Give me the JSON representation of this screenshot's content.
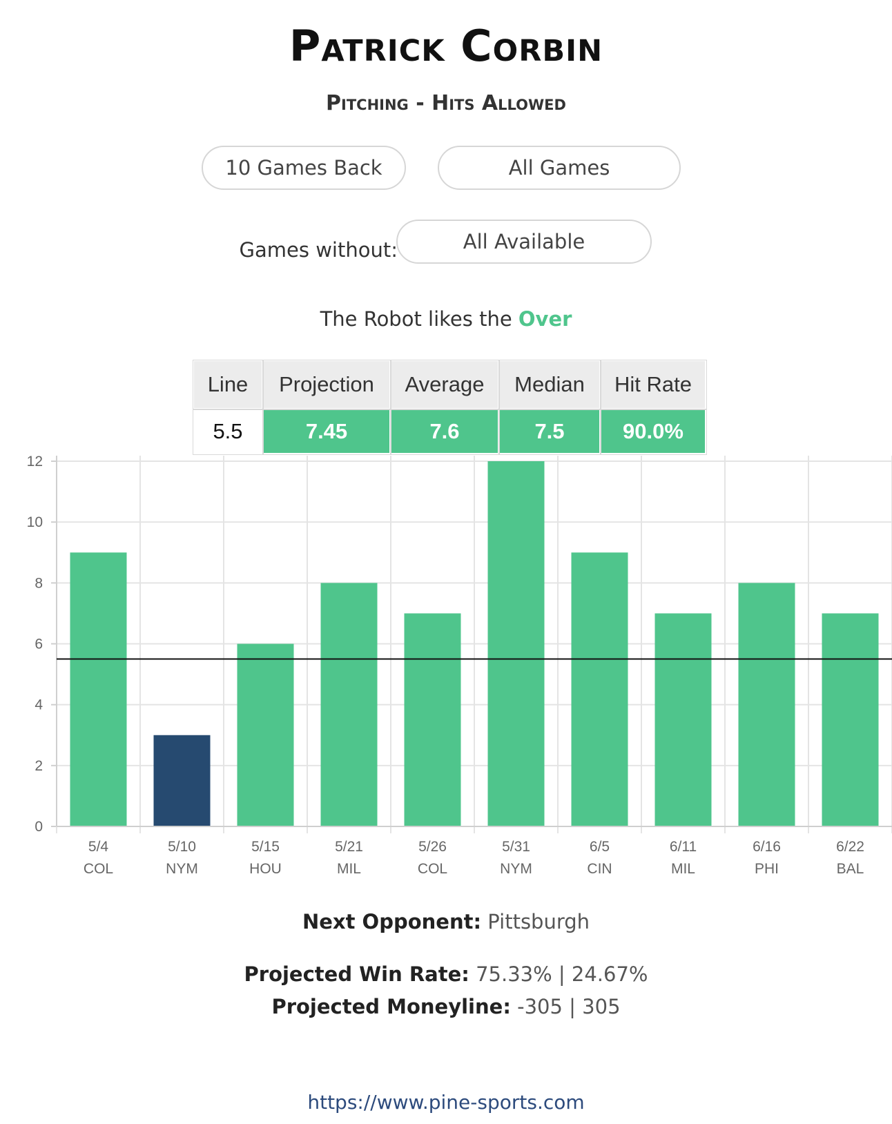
{
  "header": {
    "title": "Patrick Corbin",
    "subtitle": "Pitching - Hits Allowed"
  },
  "filters": {
    "games_back_label": "10 Games Back",
    "all_games_label": "All Games",
    "games_without_label": "Games without:",
    "games_without_value": "All Available"
  },
  "robot": {
    "prefix": "The Robot likes the",
    "pick": "Over"
  },
  "stats": {
    "headers": [
      "Line",
      "Projection",
      "Average",
      "Median",
      "Hit Rate"
    ],
    "values": [
      "5.5",
      "7.45",
      "7.6",
      "7.5",
      "90.0%"
    ]
  },
  "colors": {
    "over": "#4fc58c",
    "under": "#264a70",
    "line": "#111111"
  },
  "chart_data": {
    "type": "bar",
    "categories": [
      "5/4",
      "5/10",
      "5/15",
      "5/21",
      "5/26",
      "5/31",
      "6/5",
      "6/11",
      "6/16",
      "6/22"
    ],
    "opponents": [
      "COL",
      "NYM",
      "HOU",
      "MIL",
      "COL",
      "NYM",
      "CIN",
      "MIL",
      "PHI",
      "BAL"
    ],
    "values": [
      9,
      3,
      6,
      8,
      7,
      12,
      9,
      7,
      8,
      7
    ],
    "reference_line": 5.5,
    "ylim": [
      0,
      12
    ],
    "yticks": [
      0,
      2,
      4,
      6,
      8,
      10,
      12
    ],
    "grid": true,
    "title": "",
    "xlabel": "",
    "ylabel": ""
  },
  "footer": {
    "next_opponent_label": "Next Opponent:",
    "next_opponent": "Pittsburgh",
    "win_rate_label": "Projected Win Rate:",
    "win_rate": "75.33% | 24.67%",
    "moneyline_label": "Projected Moneyline:",
    "moneyline": "-305 | 305",
    "url": "https://www.pine-sports.com"
  }
}
